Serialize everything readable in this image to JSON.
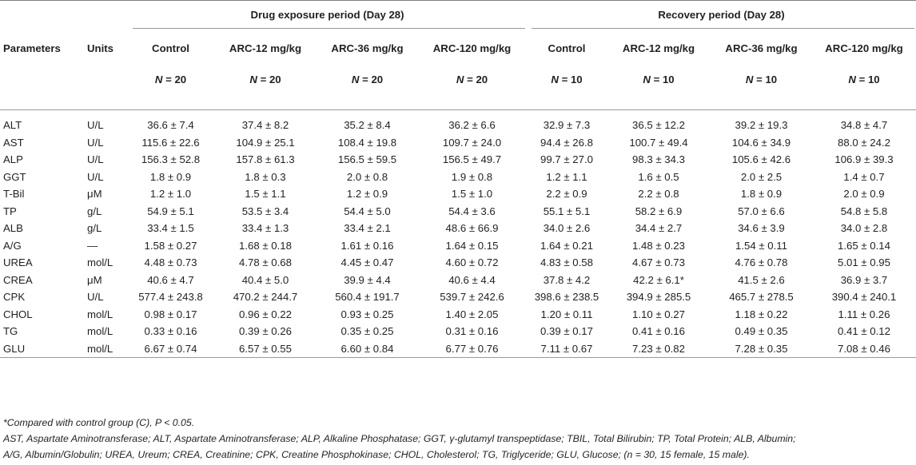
{
  "header": {
    "group1": "Drug exposure period (Day 28)",
    "group2": "Recovery period (Day 28)",
    "col_parameters": "Parameters",
    "col_units": "Units",
    "col_control_1": "Control",
    "col_arc12_1": "ARC-12 mg/kg",
    "col_arc36_1": "ARC-36 mg/kg",
    "col_arc120_1": "ARC-120 mg/kg",
    "col_control_2": "Control",
    "col_arc12_2": "ARC-12 mg/kg",
    "col_arc36_2": "ARC-36 mg/kg",
    "col_arc120_2": "ARC-120 mg/kg",
    "n_label": "N",
    "n_values": [
      "= 20",
      "= 20",
      "= 20",
      "= 20",
      "= 10",
      "= 10",
      "= 10",
      "= 10"
    ]
  },
  "rows": [
    {
      "param": "ALT",
      "unit": "U/L",
      "values": [
        "36.6 ± 7.4",
        "37.4 ± 8.2",
        "35.2 ± 8.4",
        "36.2 ± 6.6",
        "32.9 ± 7.3",
        "36.5 ± 12.2",
        "39.2 ± 19.3",
        "34.8 ± 4.7"
      ]
    },
    {
      "param": "AST",
      "unit": "U/L",
      "values": [
        "115.6 ± 22.6",
        "104.9 ± 25.1",
        "108.4 ± 19.8",
        "109.7 ± 24.0",
        "94.4 ± 26.8",
        "100.7 ± 49.4",
        "104.6 ± 34.9",
        "88.0 ± 24.2"
      ]
    },
    {
      "param": "ALP",
      "unit": "U/L",
      "values": [
        "156.3 ± 52.8",
        "157.8 ± 61.3",
        "156.5 ± 59.5",
        "156.5 ± 49.7",
        "99.7 ± 27.0",
        "98.3 ± 34.3",
        "105.6 ± 42.6",
        "106.9 ± 39.3"
      ]
    },
    {
      "param": "GGT",
      "unit": "U/L",
      "values": [
        "1.8 ± 0.9",
        "1.8 ± 0.3",
        "2.0 ± 0.8",
        "1.9 ± 0.8",
        "1.2 ± 1.1",
        "1.6 ± 0.5",
        "2.0 ± 2.5",
        "1.4 ± 0.7"
      ]
    },
    {
      "param": "T-Bil",
      "unit": "μM",
      "values": [
        "1.2 ± 1.0",
        "1.5 ± 1.1",
        "1.2 ± 0.9",
        "1.5 ± 1.0",
        "2.2 ± 0.9",
        "2.2 ± 0.8",
        "1.8 ± 0.9",
        "2.0 ± 0.9"
      ]
    },
    {
      "param": "TP",
      "unit": "g/L",
      "values": [
        "54.9 ± 5.1",
        "53.5 ± 3.4",
        "54.4 ± 5.0",
        "54.4 ± 3.6",
        "55.1 ± 5.1",
        "58.2 ± 6.9",
        "57.0 ± 6.6",
        "54.8 ± 5.8"
      ]
    },
    {
      "param": "ALB",
      "unit": "g/L",
      "values": [
        "33.4 ± 1.5",
        "33.4 ± 1.3",
        "33.4 ± 2.1",
        "48.6 ± 66.9",
        "34.0 ± 2.6",
        "34.4 ± 2.7",
        "34.6 ± 3.9",
        "34.0 ± 2.8"
      ]
    },
    {
      "param": "A/G",
      "unit": "—",
      "values": [
        "1.58 ± 0.27",
        "1.68 ± 0.18",
        "1.61 ± 0.16",
        "1.64 ± 0.15",
        "1.64 ± 0.21",
        "1.48 ± 0.23",
        "1.54 ± 0.11",
        "1.65 ± 0.14"
      ]
    },
    {
      "param": "UREA",
      "unit": "mol/L",
      "values": [
        "4.48 ± 0.73",
        "4.78 ± 0.68",
        "4.45 ± 0.47",
        "4.60 ± 0.72",
        "4.83 ± 0.58",
        "4.67 ± 0.73",
        "4.76 ± 0.78",
        "5.01 ± 0.95"
      ]
    },
    {
      "param": "CREA",
      "unit": "μM",
      "values": [
        "40.6 ± 4.7",
        "40.4 ± 5.0",
        "39.9 ± 4.4",
        "40.6 ± 4.4",
        "37.8 ± 4.2",
        "42.2 ± 6.1*",
        "41.5 ± 2.6",
        "36.9 ± 3.7"
      ]
    },
    {
      "param": "CPK",
      "unit": "U/L",
      "values": [
        "577.4 ± 243.8",
        "470.2 ± 244.7",
        "560.4 ± 191.7",
        "539.7 ± 242.6",
        "398.6 ± 238.5",
        "394.9 ± 285.5",
        "465.7 ± 278.5",
        "390.4 ± 240.1"
      ]
    },
    {
      "param": "CHOL",
      "unit": "mol/L",
      "values": [
        "0.98 ± 0.17",
        "0.96 ± 0.22",
        "0.93 ± 0.25",
        "1.40 ± 2.05",
        "1.20 ± 0.11",
        "1.10 ± 0.27",
        "1.18 ± 0.22",
        "1.11 ± 0.26"
      ]
    },
    {
      "param": "TG",
      "unit": "mol/L",
      "values": [
        "0.33 ± 0.16",
        "0.39 ± 0.26",
        "0.35 ± 0.25",
        "0.31 ± 0.16",
        "0.39 ± 0.17",
        "0.41 ± 0.16",
        "0.49 ± 0.35",
        "0.41 ± 0.12"
      ]
    },
    {
      "param": "GLU",
      "unit": "mol/L",
      "values": [
        "6.67 ± 0.74",
        "6.57 ± 0.55",
        "6.60 ± 0.84",
        "6.77 ± 0.76",
        "7.11 ± 0.67",
        "7.23 ± 0.82",
        "7.28 ± 0.35",
        "7.08 ± 0.46"
      ]
    }
  ],
  "footnotes": {
    "significance": "*Compared with control group (C), P < 0.05.",
    "abbrev_line1": "AST, Aspartate Aminotransferase; ALT, Aspartate Aminotransferase; ALP, Alkaline Phosphatase; GGT, γ-glutamyl transpeptidase; TBIL, Total Bilirubin; TP, Total Protein; ALB, Albumin;",
    "abbrev_line2": "A/G, Albumin/Globulin; UREA, Ureum; CREA, Creatinine; CPK, Creatine Phosphokinase; CHOL, Cholesterol; TG, Triglyceride; GLU, Glucose; (n = 30, 15 female, 15 male)."
  }
}
